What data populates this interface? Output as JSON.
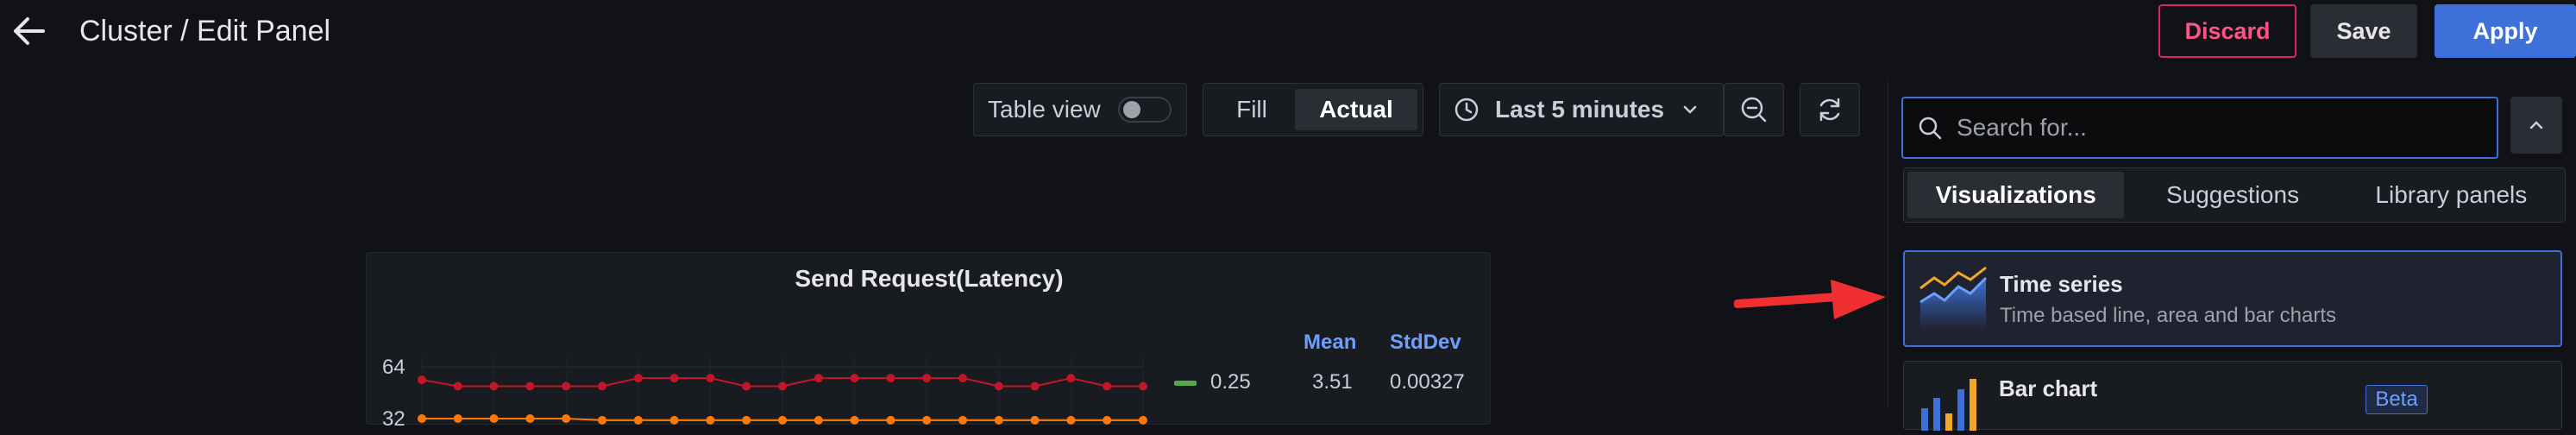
{
  "header": {
    "title": "Cluster / Edit Panel",
    "discard_label": "Discard",
    "save_label": "Save",
    "apply_label": "Apply"
  },
  "toolbar": {
    "table_view_label": "Table view",
    "table_view_on": false,
    "fill_label": "Fill",
    "actual_label": "Actual",
    "time_range": "Last 5 minutes"
  },
  "panel": {
    "title": "Send Request(Latency)",
    "y_ticks": [
      "64",
      "32"
    ],
    "legend": {
      "headers": [
        "Mean",
        "StdDev"
      ],
      "rows": [
        {
          "name": "0.25",
          "mean": "3.51",
          "stddev": "0.00327",
          "color": "#56a64b"
        }
      ]
    }
  },
  "chart_data": {
    "type": "line",
    "title": "Send Request(Latency)",
    "ylabel": "",
    "y_ticks": [
      64,
      32
    ],
    "x": [
      1,
      2,
      3,
      4,
      5,
      6,
      7,
      8,
      9,
      10,
      11,
      12,
      13,
      14,
      15,
      16,
      17,
      18,
      19,
      20,
      21
    ],
    "series": [
      {
        "color": "#c4162a",
        "values": [
          56,
          52,
          52,
          52,
          52,
          52,
          57,
          57,
          57,
          52,
          52,
          57,
          57,
          57,
          57,
          57,
          52,
          52,
          57,
          52,
          52
        ]
      },
      {
        "color": "#ff780a",
        "values": [
          32,
          32,
          32,
          32,
          32,
          31,
          31,
          31,
          31,
          31,
          31,
          31,
          31,
          31,
          31,
          31,
          31,
          31,
          31,
          31,
          31
        ]
      }
    ]
  },
  "viz_picker": {
    "search_placeholder": "Search for...",
    "tabs": [
      {
        "label": "Visualizations",
        "active": true
      },
      {
        "label": "Suggestions",
        "active": false
      },
      {
        "label": "Library panels",
        "active": false
      }
    ],
    "cards": [
      {
        "title": "Time series",
        "description": "Time based line, area and bar charts",
        "selected": true
      },
      {
        "title": "Bar chart",
        "badge": "Beta",
        "selected": false
      }
    ]
  },
  "colors": {
    "accent": "#3d71d9",
    "danger": "#e0226e",
    "annotation_arrow": "#f03030"
  }
}
